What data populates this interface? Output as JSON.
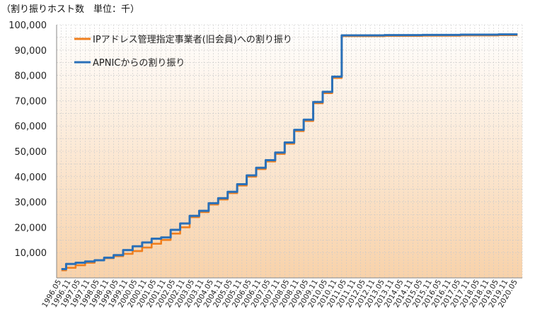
{
  "caption": "（割り振りホスト数　単位：千）",
  "chart_data": {
    "type": "line",
    "ylim": [
      0,
      100000
    ],
    "yticks": [
      "10,000",
      "20,000",
      "30,000",
      "40,000",
      "50,000",
      "60,000",
      "70,000",
      "80,000",
      "90,000",
      "100,000"
    ],
    "ytick_values": [
      10000,
      20000,
      30000,
      40000,
      50000,
      60000,
      70000,
      80000,
      90000,
      100000
    ],
    "x_categories": [
      "1996.05",
      "1996.11",
      "1997.05",
      "1997.11",
      "1998.05",
      "1998.11",
      "1999.05",
      "1999.11",
      "2000.05",
      "2000.11",
      "2001.05",
      "2001.11",
      "2002.05",
      "2002.11",
      "2003.05",
      "2003.11",
      "2004.05",
      "2004.11",
      "2005.05",
      "2005.11",
      "2006.05",
      "2006.11",
      "2007.05",
      "2007.11",
      "2008.05",
      "2008.11",
      "2009.05",
      "2009.11",
      "2010.05",
      "2010.11",
      "2011.05",
      "2011.11",
      "2012.05",
      "2012.11",
      "2013.05",
      "2013.11",
      "2014.05",
      "2014.11",
      "2015.05",
      "2015.11",
      "2016.05",
      "2016.11",
      "2017.05",
      "2017.11",
      "2018.05",
      "2018.11",
      "2019.05",
      "2019.11",
      "2020.05"
    ],
    "series": [
      {
        "name": "IPアドレス管理指定事業者(旧会員)への割り振り",
        "color": "#f07f1e",
        "points": [
          [
            "1996.05",
            3000
          ],
          [
            "1996.11",
            4000
          ],
          [
            "1997.05",
            5000
          ],
          [
            "1997.11",
            6000
          ],
          [
            "1998.05",
            7000
          ],
          [
            "1998.11",
            7800
          ],
          [
            "1999.05",
            8600
          ],
          [
            "1999.11",
            9500
          ],
          [
            "2000.05",
            10600
          ],
          [
            "2000.11",
            12000
          ],
          [
            "2001.05",
            13500
          ],
          [
            "2001.11",
            15000
          ],
          [
            "2002.05",
            17500
          ],
          [
            "2002.11",
            20000
          ],
          [
            "2003.05",
            24000
          ],
          [
            "2003.11",
            26000
          ],
          [
            "2004.05",
            29000
          ],
          [
            "2004.11",
            31000
          ],
          [
            "2005.05",
            33500
          ],
          [
            "2005.11",
            36500
          ],
          [
            "2006.05",
            40000
          ],
          [
            "2006.11",
            43000
          ],
          [
            "2007.05",
            46000
          ],
          [
            "2007.11",
            49000
          ],
          [
            "2008.05",
            53000
          ],
          [
            "2008.11",
            58000
          ],
          [
            "2009.05",
            62000
          ],
          [
            "2009.11",
            69000
          ],
          [
            "2010.05",
            73000
          ],
          [
            "2010.11",
            79000
          ],
          [
            "2011.05",
            95500
          ],
          [
            "2012.05",
            95500
          ],
          [
            "2014.05",
            95600
          ],
          [
            "2016.05",
            95700
          ],
          [
            "2018.05",
            95800
          ],
          [
            "2020.05",
            95900
          ]
        ]
      },
      {
        "name": "APNICからの割り振り",
        "color": "#2a70b8",
        "points": [
          [
            "1996.05",
            3500
          ],
          [
            "1996.11",
            5500
          ],
          [
            "1997.05",
            6000
          ],
          [
            "1997.11",
            6500
          ],
          [
            "1998.05",
            7000
          ],
          [
            "1998.11",
            8000
          ],
          [
            "1999.05",
            9000
          ],
          [
            "1999.11",
            11000
          ],
          [
            "2000.05",
            12500
          ],
          [
            "2000.11",
            14000
          ],
          [
            "2001.05",
            15500
          ],
          [
            "2001.11",
            16000
          ],
          [
            "2002.05",
            19000
          ],
          [
            "2002.11",
            21500
          ],
          [
            "2003.05",
            24500
          ],
          [
            "2003.11",
            26500
          ],
          [
            "2004.05",
            29500
          ],
          [
            "2004.11",
            31500
          ],
          [
            "2005.05",
            34000
          ],
          [
            "2005.11",
            37000
          ],
          [
            "2006.05",
            40500
          ],
          [
            "2006.11",
            43500
          ],
          [
            "2007.05",
            46500
          ],
          [
            "2007.11",
            49500
          ],
          [
            "2008.05",
            53500
          ],
          [
            "2008.11",
            58500
          ],
          [
            "2009.05",
            62500
          ],
          [
            "2009.11",
            69500
          ],
          [
            "2010.05",
            73500
          ],
          [
            "2010.11",
            79500
          ],
          [
            "2011.05",
            95800
          ],
          [
            "2012.05",
            95800
          ],
          [
            "2014.05",
            95900
          ],
          [
            "2016.05",
            96000
          ],
          [
            "2018.05",
            96100
          ],
          [
            "2020.05",
            96200
          ]
        ]
      }
    ],
    "grid": true,
    "legend_position": "top-left"
  }
}
